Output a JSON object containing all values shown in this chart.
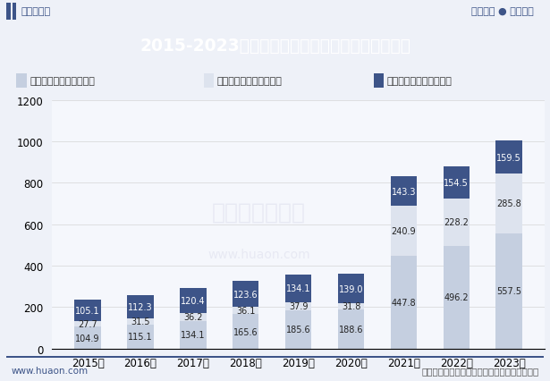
{
  "title": "2015-2023年儋州市第一、第二及第三产业增加值",
  "years": [
    "2015年",
    "2016年",
    "2017年",
    "2018年",
    "2019年",
    "2020年",
    "2021年",
    "2022年",
    "2023年"
  ],
  "sector1": [
    104.9,
    115.1,
    134.1,
    165.6,
    185.6,
    188.6,
    447.8,
    496.2,
    557.5
  ],
  "sector2": [
    27.7,
    31.5,
    36.2,
    36.1,
    37.9,
    31.8,
    240.9,
    228.2,
    285.8
  ],
  "sector3": [
    105.1,
    112.3,
    120.4,
    123.6,
    134.1,
    139.0,
    143.3,
    154.5,
    159.5
  ],
  "color_sector1": "#c5cfe0",
  "color_sector2": "#dde3ee",
  "color_sector3": "#3d5488",
  "legend_labels": [
    "第三产业增加值（亿元）",
    "第二产业增加值（亿元）",
    "第一产业增加值（亿元）"
  ],
  "legend_colors": [
    "#c5cfe0",
    "#dde3ee",
    "#3d5488"
  ],
  "ylim": [
    0,
    1200
  ],
  "yticks": [
    0,
    200,
    400,
    600,
    800,
    1000,
    1200
  ],
  "header_bg": "#3d5488",
  "header_text": "#ffffff",
  "bg_color": "#eef1f8",
  "plot_bg": "#f5f7fc",
  "top_bg": "#ffffff",
  "footer_left": "www.huaon.com",
  "footer_right": "数据来源：海南省统计局；华经产业研究院整理",
  "label_fontsize": 7.0,
  "tick_fontsize": 8.5,
  "title_fontsize": 13.5,
  "bar_width": 0.5
}
